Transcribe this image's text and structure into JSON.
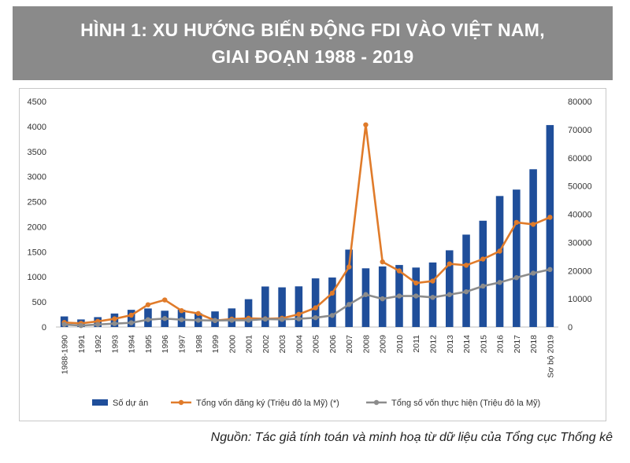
{
  "title": {
    "line1": "HÌNH 1: XU HƯỚNG BIẾN ĐỘNG FDI VÀO VIỆT NAM,",
    "line2": "GIAI ĐOẠN 1988 - 2019"
  },
  "source": "Nguồn: Tác giả tính toán và minh hoạ từ dữ liệu của Tổng cục Thống kê",
  "chart_data": {
    "type": "bar",
    "title": "",
    "xlabel": "",
    "ylabel": "",
    "categories": [
      "1988-1990",
      "1991",
      "1992",
      "1993",
      "1994",
      "1995",
      "1996",
      "1997",
      "1998",
      "1999",
      "2000",
      "2001",
      "2002",
      "2003",
      "2004",
      "2005",
      "2006",
      "2007",
      "2008",
      "2009",
      "2010",
      "2011",
      "2012",
      "2013",
      "2014",
      "2015",
      "2016",
      "2017",
      "2018",
      "Sơ bộ 2019"
    ],
    "y_left": {
      "range": [
        0,
        4500
      ],
      "ticks": [
        "0",
        "500",
        "1000",
        "1500",
        "2000",
        "2500",
        "3000",
        "3500",
        "4000",
        "4500"
      ]
    },
    "y_right": {
      "range": [
        0,
        80000
      ],
      "ticks": [
        "0",
        "10000",
        "20000",
        "30000",
        "40000",
        "50000",
        "60000",
        "70000",
        "80000"
      ]
    },
    "legend_position": "bottom",
    "grid": false,
    "series": [
      {
        "name": "Số dự án",
        "kind": "bar",
        "axis": "left",
        "color": "#1f4e9a",
        "values": [
          211,
          151,
          197,
          269,
          343,
          370,
          325,
          345,
          275,
          311,
          371,
          555,
          808,
          791,
          811,
          970,
          987,
          1544,
          1171,
          1208,
          1237,
          1186,
          1287,
          1530,
          1843,
          2120,
          2613,
          2741,
          3147,
          4028
        ]
      },
      {
        "name": "Tổng vốn đăng ký (Triệu đô la Mỹ) (*)",
        "kind": "line",
        "axis": "right",
        "color": "#e07b2a",
        "values": [
          1600,
          1300,
          2000,
          2900,
          4200,
          7900,
          9600,
          5800,
          4800,
          2300,
          2800,
          3100,
          2900,
          3100,
          4500,
          6800,
          12000,
          21300,
          71700,
          23100,
          19900,
          15600,
          16300,
          22400,
          21900,
          24100,
          26900,
          37100,
          36400,
          38900
        ]
      },
      {
        "name": "Tổng số vốn thực hiện (Triệu đô la Mỹ)",
        "kind": "line",
        "axis": "right",
        "color": "#8c8c8c",
        "values": [
          900,
          500,
          900,
          1200,
          1500,
          2600,
          3000,
          2600,
          2400,
          2300,
          2400,
          2400,
          2800,
          2700,
          2900,
          3300,
          4100,
          8000,
          11500,
          10000,
          11000,
          11000,
          10500,
          11500,
          12500,
          14500,
          15800,
          17500,
          19100,
          20400
        ]
      }
    ]
  }
}
